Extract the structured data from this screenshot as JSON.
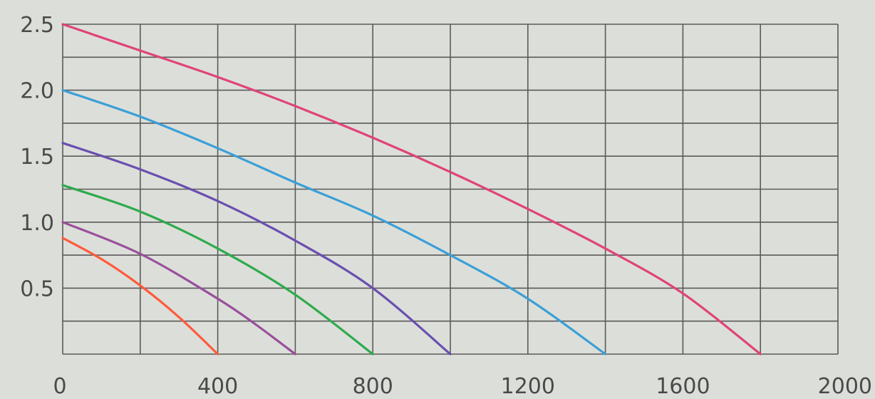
{
  "chart_data": {
    "type": "line",
    "xlabel": "",
    "ylabel": "",
    "xlim": [
      0,
      2000
    ],
    "ylim": [
      0,
      2.5
    ],
    "grid": true,
    "legend": "none",
    "x_ticks": [
      {
        "value": 0,
        "label": "0"
      },
      {
        "value": 400,
        "label": "400"
      },
      {
        "value": 800,
        "label": "800"
      },
      {
        "value": 1200,
        "label": "1200"
      },
      {
        "value": 1600,
        "label": "1600"
      },
      {
        "value": 2000,
        "label": "2000"
      }
    ],
    "y_ticks": [
      {
        "value": 0.5,
        "label": "0.5"
      },
      {
        "value": 1.0,
        "label": "1.0"
      },
      {
        "value": 1.5,
        "label": "1.5"
      },
      {
        "value": 2.0,
        "label": "2.0"
      },
      {
        "value": 2.5,
        "label": "2.5"
      }
    ],
    "x_grid_step": 200,
    "y_grid_step": 0.25,
    "series": [
      {
        "color": "#ff5a3c",
        "x": [
          0,
          100,
          200,
          300,
          400
        ],
        "y": [
          0.88,
          0.72,
          0.52,
          0.28,
          0.0
        ]
      },
      {
        "color": "#9a4f9c",
        "x": [
          0,
          200,
          400,
          500,
          600
        ],
        "y": [
          1.0,
          0.76,
          0.42,
          0.22,
          0.0
        ]
      },
      {
        "color": "#2faa4d",
        "x": [
          0,
          200,
          400,
          600,
          800
        ],
        "y": [
          1.28,
          1.08,
          0.8,
          0.45,
          0.0
        ]
      },
      {
        "color": "#6a4fb0",
        "x": [
          0,
          200,
          400,
          600,
          800,
          1000
        ],
        "y": [
          1.6,
          1.4,
          1.16,
          0.86,
          0.5,
          0.0
        ]
      },
      {
        "color": "#3a9fd8",
        "x": [
          0,
          200,
          400,
          600,
          800,
          1000,
          1200,
          1400
        ],
        "y": [
          2.0,
          1.8,
          1.56,
          1.3,
          1.05,
          0.75,
          0.42,
          0.0
        ]
      },
      {
        "color": "#e0437a",
        "x": [
          0,
          200,
          400,
          600,
          800,
          1000,
          1200,
          1400,
          1600,
          1800
        ],
        "y": [
          2.5,
          2.3,
          2.1,
          1.88,
          1.64,
          1.38,
          1.1,
          0.8,
          0.46,
          0.0
        ]
      }
    ]
  }
}
